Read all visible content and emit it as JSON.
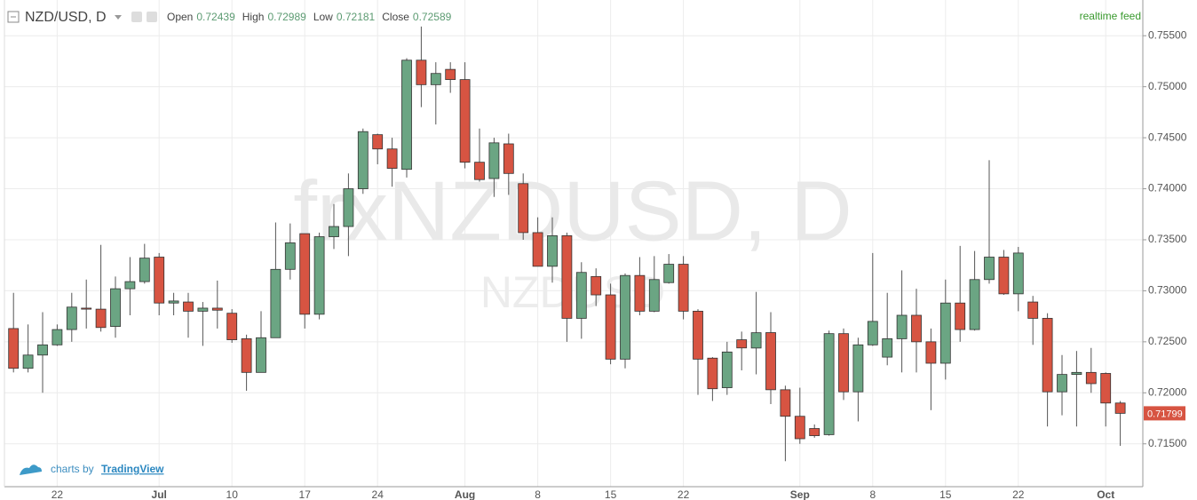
{
  "header": {
    "symbol": "NZD/USD, D",
    "fields": [
      {
        "label": "Open",
        "value": 0.72439
      },
      {
        "label": "High",
        "value": 0.72989
      },
      {
        "label": "Low",
        "value": 0.72181
      },
      {
        "label": "Close",
        "value": 0.72589
      }
    ],
    "feed": "realtime feed"
  },
  "chart_data": {
    "type": "candlestick",
    "watermark": "frxNZDUSD, D",
    "watermark_sub": "NZDUSD",
    "up_color": "#6ba583",
    "down_color": "#d75442",
    "categories": [
      null,
      null,
      null,
      "22",
      null,
      null,
      null,
      null,
      null,
      null,
      "Jul",
      null,
      null,
      null,
      null,
      "10",
      null,
      null,
      null,
      null,
      "17",
      null,
      null,
      null,
      null,
      "24",
      null,
      null,
      null,
      null,
      null,
      "Aug",
      null,
      null,
      null,
      null,
      "8",
      null,
      null,
      null,
      null,
      "15",
      null,
      null,
      null,
      null,
      "22",
      null,
      null,
      null,
      null,
      null,
      null,
      null,
      "Sep",
      null,
      null,
      null,
      null,
      "8",
      null,
      null,
      null,
      null,
      "15",
      null,
      null,
      null,
      null,
      "22",
      null,
      null,
      null,
      null,
      null,
      "Oct",
      null
    ],
    "open": [
      0.7263,
      0.7224,
      0.7237,
      0.7247,
      0.7262,
      0.7283,
      0.7282,
      0.7265,
      0.7302,
      0.7309,
      0.7333,
      0.7288,
      0.7289,
      0.728,
      0.7283,
      0.7278,
      0.7253,
      0.722,
      0.7254,
      0.7321,
      0.7356,
      0.7277,
      0.7353,
      0.7363,
      0.74,
      0.7453,
      0.7439,
      0.7419,
      0.7526,
      0.7502,
      0.7517,
      0.7507,
      0.7426,
      0.741,
      0.7444,
      0.7405,
      0.7357,
      0.7324,
      0.7354,
      0.7273,
      0.7314,
      0.7296,
      0.7233,
      0.7315,
      0.728,
      0.7308,
      0.7326,
      0.728,
      0.7234,
      0.7205,
      0.7252,
      0.72439,
      0.7259,
      0.7203,
      0.7177,
      0.7165,
      0.7159,
      0.7258,
      0.7201,
      0.7247,
      0.7235,
      0.7253,
      0.7276,
      0.725,
      0.7229,
      0.7288,
      0.7262,
      0.7311,
      0.7333,
      0.7297,
      0.7289,
      0.7273,
      0.7201,
      0.7218,
      0.722,
      0.7219,
      0.719
    ],
    "high": [
      0.7298,
      0.7267,
      0.7279,
      0.7267,
      0.7298,
      0.7311,
      0.7345,
      0.7314,
      0.7333,
      0.7346,
      0.7337,
      0.7298,
      0.7298,
      0.7289,
      0.731,
      0.7282,
      0.7257,
      0.728,
      0.7367,
      0.7366,
      0.7356,
      0.7357,
      0.7385,
      0.7415,
      0.7459,
      0.7454,
      0.745,
      0.7528,
      0.7559,
      0.7524,
      0.7524,
      0.7524,
      0.7459,
      0.745,
      0.7454,
      0.7415,
      0.7372,
      0.7372,
      0.7357,
      0.7328,
      0.7322,
      0.7307,
      0.7317,
      0.7333,
      0.7334,
      0.7336,
      0.7334,
      0.7282,
      0.7235,
      0.725,
      0.726,
      0.72989,
      0.7279,
      0.7207,
      0.7205,
      0.7169,
      0.7261,
      0.7263,
      0.7254,
      0.7337,
      0.7298,
      0.732,
      0.7302,
      0.7263,
      0.7311,
      0.7344,
      0.7339,
      0.7428,
      0.734,
      0.7343,
      0.7295,
      0.7278,
      0.7237,
      0.7241,
      0.7244,
      0.722,
      0.7192
    ],
    "low": [
      0.722,
      0.722,
      0.72,
      0.7246,
      0.725,
      0.7263,
      0.726,
      0.7254,
      0.7276,
      0.7307,
      0.7276,
      0.7276,
      0.7254,
      0.7246,
      0.7263,
      0.7249,
      0.7202,
      0.722,
      0.7254,
      0.7311,
      0.7263,
      0.7272,
      0.7341,
      0.7334,
      0.7395,
      0.7424,
      0.7402,
      0.7411,
      0.748,
      0.7463,
      0.7494,
      0.742,
      0.7407,
      0.7392,
      0.7394,
      0.735,
      0.7324,
      0.7308,
      0.725,
      0.7253,
      0.7285,
      0.7228,
      0.7224,
      0.7276,
      0.7279,
      0.7307,
      0.7272,
      0.7198,
      0.7192,
      0.7198,
      0.7222,
      0.72181,
      0.7189,
      0.7133,
      0.715,
      0.7156,
      0.7158,
      0.7193,
      0.7172,
      0.7246,
      0.7227,
      0.722,
      0.722,
      0.7183,
      0.7213,
      0.725,
      0.7261,
      0.7307,
      0.7296,
      0.728,
      0.7247,
      0.7167,
      0.7178,
      0.7167,
      0.72,
      0.7167,
      0.7148
    ],
    "close": [
      0.7224,
      0.7237,
      0.7247,
      0.7262,
      0.7284,
      0.7282,
      0.7264,
      0.7302,
      0.7309,
      0.7332,
      0.7288,
      0.729,
      0.728,
      0.7283,
      0.7281,
      0.7252,
      0.722,
      0.7254,
      0.7321,
      0.7347,
      0.7277,
      0.7353,
      0.7363,
      0.74,
      0.7456,
      0.7439,
      0.742,
      0.7526,
      0.7502,
      0.7513,
      0.7507,
      0.7426,
      0.7409,
      0.7445,
      0.7415,
      0.7357,
      0.7324,
      0.7354,
      0.7273,
      0.7318,
      0.7296,
      0.7233,
      0.7315,
      0.728,
      0.7311,
      0.7326,
      0.728,
      0.7233,
      0.7204,
      0.724,
      0.7244,
      0.72589,
      0.7203,
      0.7177,
      0.7155,
      0.7158,
      0.7258,
      0.7201,
      0.7247,
      0.727,
      0.7253,
      0.7276,
      0.725,
      0.7229,
      0.7288,
      0.7262,
      0.7311,
      0.7333,
      0.7297,
      0.7337,
      0.7273,
      0.7201,
      0.7218,
      0.722,
      0.7209,
      0.719,
      0.71799
    ],
    "last_price": 0.71799,
    "ylim": [
      0.7108,
      0.7585
    ],
    "yticks": [
      {
        "value": 0.715,
        "label": "0.71500"
      },
      {
        "value": 0.72,
        "label": "0.72000"
      },
      {
        "value": 0.725,
        "label": "0.72500"
      },
      {
        "value": 0.73,
        "label": "0.73000"
      },
      {
        "value": 0.735,
        "label": "0.73500"
      },
      {
        "value": 0.74,
        "label": "0.74000"
      },
      {
        "value": 0.745,
        "label": "0.74500"
      },
      {
        "value": 0.75,
        "label": "0.75000"
      },
      {
        "value": 0.755,
        "label": "0.75500"
      }
    ],
    "grid": true
  },
  "footer": {
    "prefix": "charts by",
    "brand": "TradingView"
  }
}
